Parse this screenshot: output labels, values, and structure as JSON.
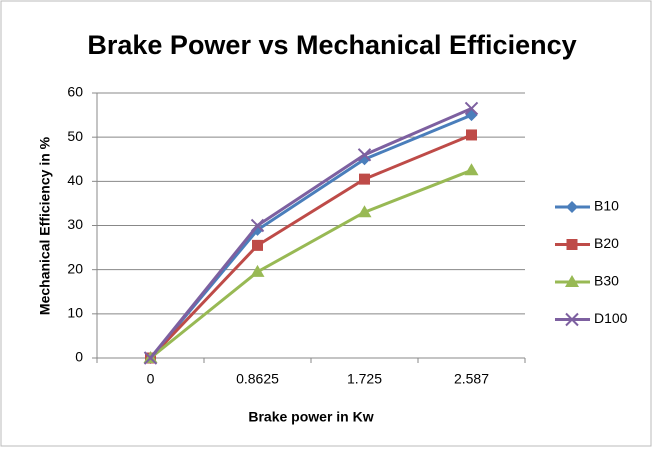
{
  "chart_data": {
    "type": "line",
    "title": "Brake Power vs Mechanical Efficiency",
    "x_label": "Brake power in Kw",
    "y_label": "Mechanical Efficiency in %",
    "categories": [
      "0",
      "0.8625",
      "1.725",
      "2.587"
    ],
    "series": [
      {
        "name": "B10",
        "color": "#4a7ebb",
        "marker": "diamond",
        "values": [
          0,
          29,
          45,
          55
        ]
      },
      {
        "name": "B20",
        "color": "#be4b48",
        "marker": "square",
        "values": [
          0,
          25.5,
          40.5,
          50.5
        ]
      },
      {
        "name": "B30",
        "color": "#98b954",
        "marker": "triangle",
        "values": [
          0,
          19.5,
          33,
          42.5
        ]
      },
      {
        "name": "D100",
        "color": "#7d60a0",
        "marker": "x",
        "values": [
          0,
          30,
          46,
          56.5
        ]
      }
    ],
    "ylim": [
      0,
      60
    ],
    "yticks": [
      0,
      10,
      20,
      30,
      40,
      50,
      60
    ],
    "grid": true,
    "legend": "right"
  }
}
